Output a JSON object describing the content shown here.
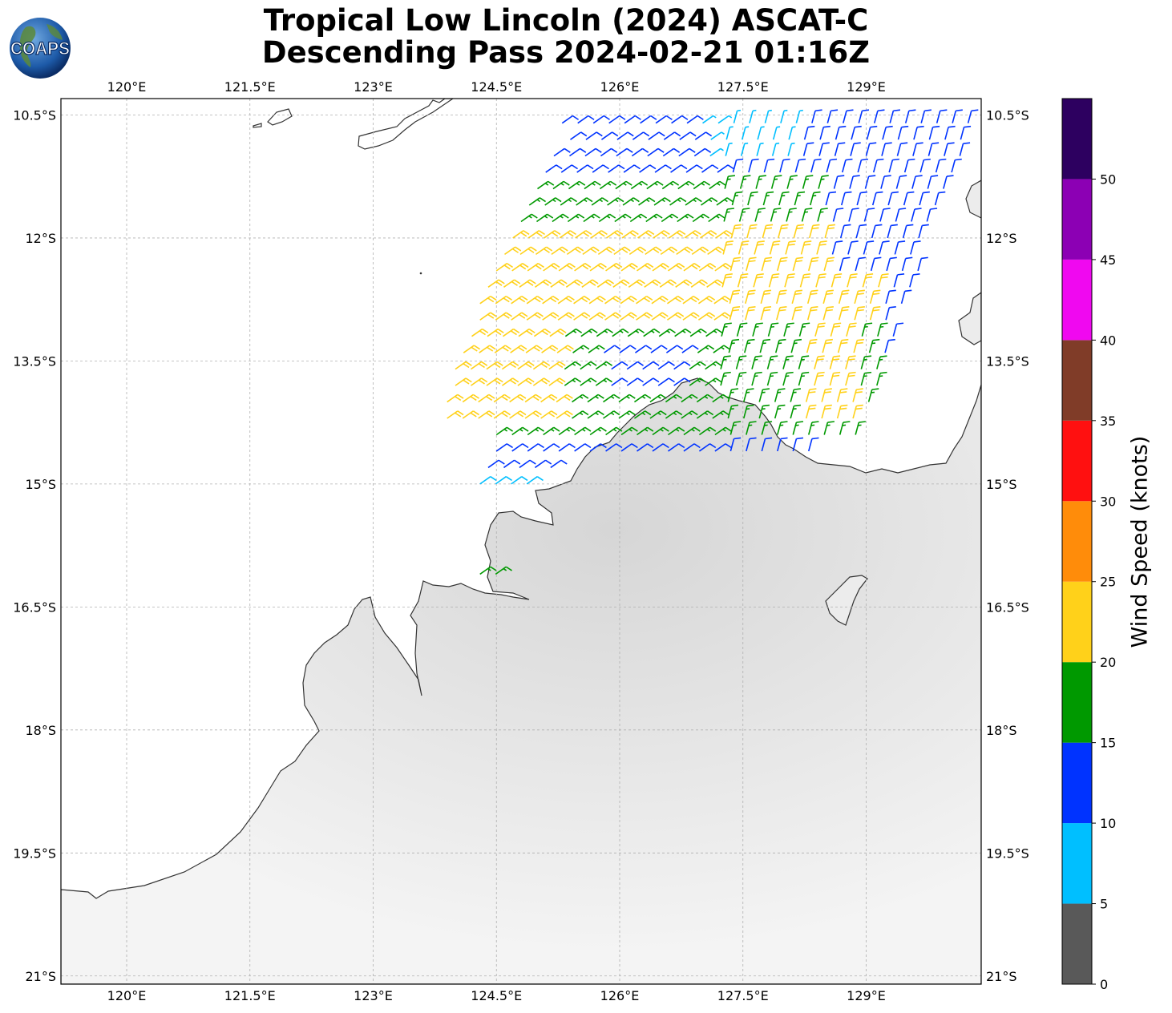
{
  "title": {
    "line1": "Tropical Low Lincoln (2024) ASCAT-C",
    "line2": "Descending Pass 2024-02-21 01:16Z"
  },
  "logo": {
    "text": "COAPS",
    "icon": "globe-icon"
  },
  "map": {
    "lon_range": [
      119.2,
      130.4
    ],
    "lat_range": [
      -21.1,
      -10.3
    ],
    "lon_ticks": [
      "120°E",
      "121.5°E",
      "123°E",
      "124.5°E",
      "126°E",
      "127.5°E",
      "129°E"
    ],
    "lon_tick_values": [
      120,
      121.5,
      123,
      124.5,
      126,
      127.5,
      129
    ],
    "lat_ticks": [
      "10.5°S",
      "12°S",
      "13.5°S",
      "15°S",
      "16.5°S",
      "18°S",
      "19.5°S",
      "21°S"
    ],
    "lat_tick_values": [
      -10.5,
      -12,
      -13.5,
      -15,
      -16.5,
      -18,
      -19.5,
      -21
    ],
    "grid": true,
    "land_color": "#ececec",
    "coast_color": "#333333"
  },
  "colorbar": {
    "label": "Wind Speed (knots)",
    "ticks": [
      "0",
      "5",
      "10",
      "15",
      "20",
      "25",
      "30",
      "35",
      "40",
      "45",
      "50"
    ],
    "bins": [
      {
        "min": 0,
        "max": 5,
        "color": "#595959"
      },
      {
        "min": 5,
        "max": 10,
        "color": "#00bfff"
      },
      {
        "min": 10,
        "max": 15,
        "color": "#0033ff"
      },
      {
        "min": 15,
        "max": 20,
        "color": "#009900"
      },
      {
        "min": 20,
        "max": 25,
        "color": "#ffd11a"
      },
      {
        "min": 25,
        "max": 30,
        "color": "#ff8c0a"
      },
      {
        "min": 30,
        "max": 35,
        "color": "#ff1010"
      },
      {
        "min": 35,
        "max": 40,
        "color": "#803c28"
      },
      {
        "min": 40,
        "max": 45,
        "color": "#f008f0"
      },
      {
        "min": 45,
        "max": 50,
        "color": "#8c00b4"
      },
      {
        "min": 50,
        "max": 55,
        "color": "#2d0060"
      }
    ]
  },
  "wind_swath": {
    "description_shown": "wind barbs",
    "rows": [
      {
        "lat": -10.6,
        "lon_start": 125.3,
        "lon_end": 130.3,
        "speed": 12
      },
      {
        "lat": -10.8,
        "lon_start": 125.4,
        "lon_end": 130.2,
        "speed": 12
      },
      {
        "lat": -11.0,
        "lon_start": 125.2,
        "lon_end": 130.2,
        "speed": 12
      },
      {
        "lat": -11.2,
        "lon_start": 125.1,
        "lon_end": 130.1,
        "speed": 12
      },
      {
        "lat": -11.4,
        "lon_start": 125.0,
        "lon_end": 130.0,
        "speed": 17
      },
      {
        "lat": -11.6,
        "lon_start": 124.9,
        "lon_end": 130.0,
        "speed": 17
      },
      {
        "lat": -11.8,
        "lon_start": 124.8,
        "lon_end": 129.9,
        "speed": 17
      },
      {
        "lat": -12.0,
        "lon_start": 124.7,
        "lon_end": 129.8,
        "speed": 22
      },
      {
        "lat": -12.2,
        "lon_start": 124.6,
        "lon_end": 129.7,
        "speed": 22
      },
      {
        "lat": -12.4,
        "lon_start": 124.5,
        "lon_end": 129.7,
        "speed": 22
      },
      {
        "lat": -12.6,
        "lon_start": 124.4,
        "lon_end": 129.6,
        "speed": 22
      },
      {
        "lat": -12.8,
        "lon_start": 124.3,
        "lon_end": 129.5,
        "speed": 22
      },
      {
        "lat": -13.0,
        "lon_start": 124.3,
        "lon_end": 129.4,
        "speed": 22
      },
      {
        "lat": -13.2,
        "lon_start": 124.2,
        "lon_end": 129.4,
        "speed": 17
      },
      {
        "lat": -13.4,
        "lon_start": 124.1,
        "lon_end": 129.3,
        "speed": 17
      },
      {
        "lat": -13.6,
        "lon_start": 124.0,
        "lon_end": 129.2,
        "speed": 17
      },
      {
        "lat": -13.8,
        "lon_start": 124.0,
        "lon_end": 129.2,
        "speed": 17
      },
      {
        "lat": -14.0,
        "lon_start": 123.9,
        "lon_end": 129.1,
        "speed": 17
      },
      {
        "lat": -14.2,
        "lon_start": 123.9,
        "lon_end": 129.0,
        "speed": 17
      },
      {
        "lat": -14.4,
        "lon_start": 124.5,
        "lon_end": 128.9,
        "speed": 17
      },
      {
        "lat": -14.6,
        "lon_start": 124.5,
        "lon_end": 128.4,
        "speed": 12
      },
      {
        "lat": -14.8,
        "lon_start": 124.4,
        "lon_end": 125.2,
        "speed": 12
      },
      {
        "lat": -15.0,
        "lon_start": 124.3,
        "lon_end": 124.9,
        "speed": 8
      },
      {
        "lat": -16.1,
        "lon_start": 124.3,
        "lon_end": 124.5,
        "speed": 17
      }
    ]
  }
}
